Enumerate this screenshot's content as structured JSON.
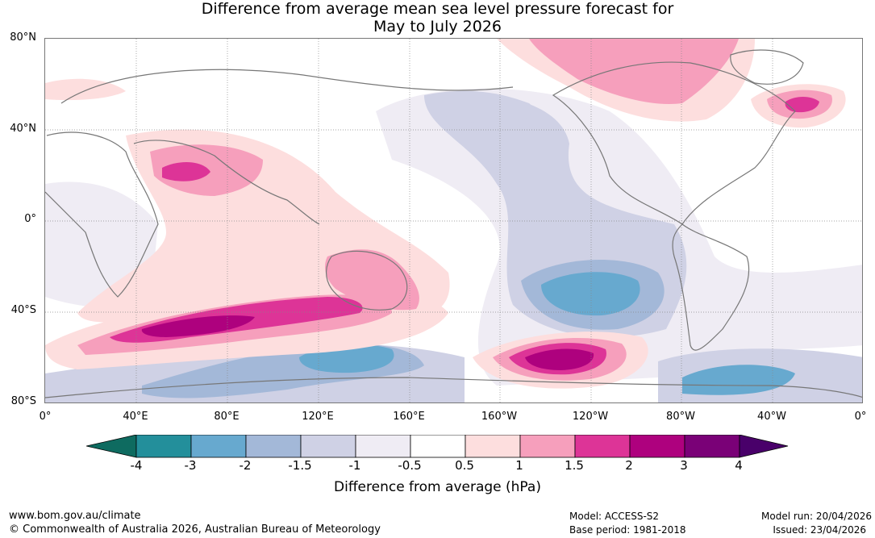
{
  "title": {
    "line1": "Difference from average mean sea level pressure forecast for",
    "line2": "May to July 2026"
  },
  "map": {
    "lat_labels": [
      "80°N",
      "40°N",
      "0°",
      "40°S",
      "80°S"
    ],
    "lon_labels": [
      "0°",
      "40°E",
      "80°E",
      "120°E",
      "160°E",
      "160°W",
      "120°W",
      "80°W",
      "40°W",
      "0°"
    ]
  },
  "colorbar": {
    "ticks": [
      "-4",
      "-3",
      "-2",
      "-1.5",
      "-1",
      "-0.5",
      "0.5",
      "1",
      "1.5",
      "2",
      "3",
      "4"
    ],
    "colors": [
      "#0e6b60",
      "#238f9b",
      "#67a9cf",
      "#a3b8d8",
      "#cfd1e5",
      "#efecf4",
      "#ffffff",
      "#fddede",
      "#f69fbc",
      "#dd3497",
      "#ae017e",
      "#7a0177",
      "#49006a"
    ],
    "label": "Difference from average (hPa)"
  },
  "footer": {
    "url": "www.bom.gov.au/climate",
    "copyright": "© Commonwealth of Australia 2026, Australian Bureau of Meteorology",
    "model": "Model: ACCESS-S2",
    "base_period": "Base period: 1981-2018",
    "model_run": "Model run: 20/04/2026",
    "issued": "Issued: 23/04/2026"
  }
}
